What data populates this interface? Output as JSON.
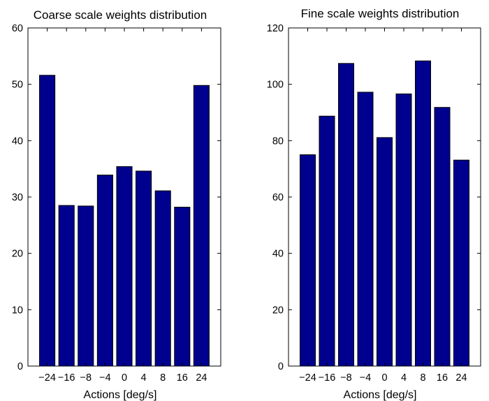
{
  "chart_data": [
    {
      "type": "bar",
      "title": "Coarse scale weights distribution",
      "xlabel": "Actions [deg/s]",
      "ylabel": "",
      "categories": [
        "−24",
        "−16",
        "−8",
        "−4",
        "0",
        "4",
        "8",
        "16",
        "24"
      ],
      "values": [
        51.6,
        28.5,
        28.4,
        33.9,
        35.4,
        34.6,
        31.1,
        28.2,
        49.8
      ],
      "ylim": [
        0,
        60
      ],
      "yticks": [
        "0",
        "10",
        "20",
        "30",
        "40",
        "50",
        "60"
      ],
      "bar_color": "#00008f",
      "grid": false,
      "legend": "none"
    },
    {
      "type": "bar",
      "title": "Fine scale weights distribution",
      "xlabel": "Actions [deg/s]",
      "ylabel": "",
      "categories": [
        "−24",
        "−16",
        "−8",
        "−4",
        "0",
        "4",
        "8",
        "16",
        "24"
      ],
      "values": [
        75,
        88.7,
        107.4,
        97.2,
        81.1,
        96.6,
        108.3,
        91.8,
        73.1
      ],
      "ylim": [
        0,
        120
      ],
      "yticks": [
        "0",
        "20",
        "40",
        "60",
        "80",
        "100",
        "120"
      ],
      "bar_color": "#00008f",
      "grid": false,
      "legend": "none"
    }
  ]
}
